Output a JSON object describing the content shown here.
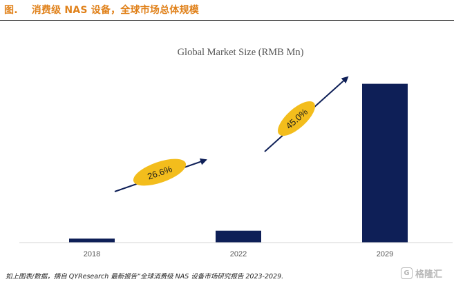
{
  "header": {
    "figure_prefix": "图.",
    "figure_title": "消费级 NAS 设备，全球市场总体规模"
  },
  "chart_data": {
    "type": "bar",
    "title": "Global Market Size (RMB Mn)",
    "categories": [
      "2018",
      "2022",
      "2029"
    ],
    "values": [
      4,
      12,
      160
    ],
    "ylim": [
      0,
      175
    ],
    "xlabel": "",
    "ylabel": "",
    "grid": false,
    "bar_color": "#0e1f57",
    "annotations": [
      {
        "label": "26.6%",
        "from": "2018",
        "to": "2022"
      },
      {
        "label": "45.0%",
        "from": "2022",
        "to": "2029"
      }
    ],
    "annotation_color": "#f3bd1c",
    "arrow_color": "#0e1f57"
  },
  "footer": {
    "source": "如上图表/数据，摘自 QYResearch 最新报告“全球消费级 NAS 设备市场研究报告 2023-2029."
  },
  "watermark": {
    "badge": "G",
    "text": "格隆汇"
  }
}
